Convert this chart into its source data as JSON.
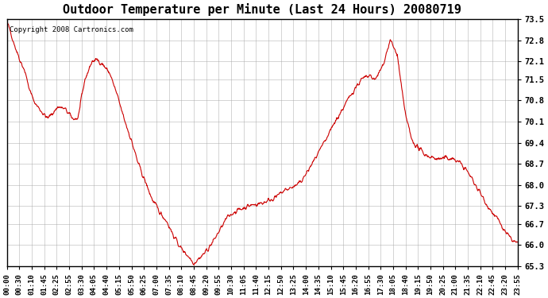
{
  "title": "Outdoor Temperature per Minute (Last 24 Hours) 20080719",
  "copyright_text": "Copyright 2008 Cartronics.com",
  "line_color": "#cc0000",
  "background_color": "#ffffff",
  "grid_color": "#aaaaaa",
  "ylim": [
    65.3,
    73.5
  ],
  "yticks": [
    65.3,
    66.0,
    66.7,
    67.3,
    68.0,
    68.7,
    69.4,
    70.1,
    70.8,
    71.5,
    72.1,
    72.8,
    73.5
  ],
  "xtick_labels": [
    "00:00",
    "00:30",
    "01:10",
    "01:45",
    "02:25",
    "02:55",
    "03:30",
    "04:05",
    "04:40",
    "05:15",
    "05:50",
    "06:25",
    "07:00",
    "07:35",
    "08:10",
    "08:45",
    "09:20",
    "09:55",
    "10:30",
    "11:05",
    "11:40",
    "12:15",
    "12:50",
    "13:25",
    "14:00",
    "14:35",
    "15:10",
    "15:45",
    "16:20",
    "16:55",
    "17:30",
    "18:05",
    "18:40",
    "19:15",
    "19:50",
    "20:25",
    "21:00",
    "21:35",
    "22:10",
    "22:45",
    "23:20",
    "23:55"
  ],
  "key_times": [
    0,
    10,
    20,
    35,
    50,
    65,
    80,
    100,
    115,
    130,
    145,
    165,
    185,
    200,
    220,
    240,
    255,
    270,
    290,
    310,
    330,
    350,
    370,
    390,
    410,
    430,
    450,
    470,
    490,
    510,
    520,
    527,
    535,
    550,
    565,
    580,
    600,
    620,
    640,
    660,
    680,
    700,
    720,
    740,
    760,
    780,
    800,
    820,
    840,
    860,
    880,
    900,
    920,
    940,
    960,
    980,
    1000,
    1020,
    1040,
    1060,
    1080,
    1100,
    1120,
    1140,
    1160,
    1180,
    1200,
    1220,
    1240,
    1260,
    1280,
    1300,
    1320,
    1340,
    1360,
    1380,
    1400,
    1420,
    1439
  ],
  "key_temps": [
    73.4,
    73.1,
    72.7,
    72.2,
    71.8,
    71.1,
    70.7,
    70.4,
    70.2,
    70.4,
    70.6,
    70.5,
    70.2,
    70.2,
    71.5,
    72.1,
    72.15,
    72.0,
    71.7,
    71.0,
    70.2,
    69.5,
    68.7,
    68.1,
    67.5,
    67.1,
    66.8,
    66.3,
    65.9,
    65.65,
    65.5,
    65.4,
    65.5,
    65.65,
    65.85,
    66.1,
    66.5,
    66.9,
    67.1,
    67.2,
    67.3,
    67.35,
    67.4,
    67.5,
    67.6,
    67.8,
    67.9,
    68.0,
    68.3,
    68.7,
    69.1,
    69.5,
    70.0,
    70.4,
    70.8,
    71.2,
    71.5,
    71.6,
    71.5,
    72.0,
    72.8,
    72.3,
    70.5,
    69.5,
    69.2,
    69.0,
    68.9,
    68.85,
    68.9,
    68.85,
    68.7,
    68.4,
    68.0,
    67.6,
    67.2,
    66.9,
    66.5,
    66.2,
    66.05
  ]
}
